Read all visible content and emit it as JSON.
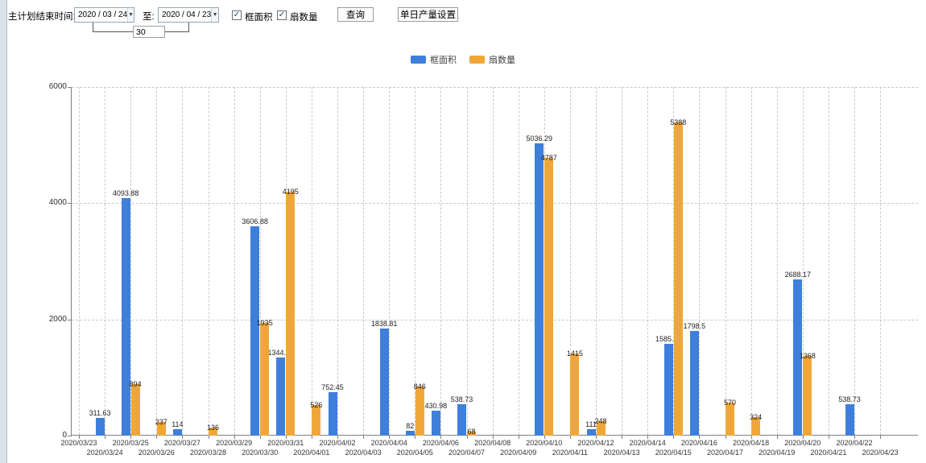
{
  "toolbar": {
    "main_label": "主计划结束时间:",
    "date_from": "2020 / 03 / 24",
    "to_label": "至:",
    "date_to": "2020 / 04 / 23",
    "days_value": "30",
    "checkbox_frame_area": {
      "label": "框面积",
      "checked": true
    },
    "checkbox_fan_count": {
      "label": "扇数量",
      "checked": true
    },
    "query_button": "查询",
    "daily_output_button": "单日产量设置"
  },
  "legend": {
    "items": [
      {
        "label": "框面积",
        "color": "#3e7fdc"
      },
      {
        "label": "扇数量",
        "color": "#f0a73a"
      }
    ]
  },
  "chart_data": {
    "type": "bar",
    "title": "",
    "xlabel": "",
    "ylabel": "",
    "ylim": [
      0,
      6000
    ],
    "yticks": [
      0,
      2000,
      4000,
      6000
    ],
    "grid": "dashed",
    "legend_position": "top-center",
    "categories": [
      "2020/03/23",
      "2020/03/24",
      "2020/03/25",
      "2020/03/26",
      "2020/03/27",
      "2020/03/28",
      "2020/03/29",
      "2020/03/30",
      "2020/03/31",
      "2020/04/01",
      "2020/04/02",
      "2020/04/03",
      "2020/04/04",
      "2020/04/05",
      "2020/04/06",
      "2020/04/07",
      "2020/04/08",
      "2020/04/09",
      "2020/04/10",
      "2020/04/11",
      "2020/04/12",
      "2020/04/13",
      "2020/04/14",
      "2020/04/15",
      "2020/04/16",
      "2020/04/17",
      "2020/04/18",
      "2020/04/19",
      "2020/04/20",
      "2020/04/21",
      "2020/04/22",
      "2020/04/23"
    ],
    "series": [
      {
        "name": "框面积",
        "key": "frame-area",
        "color": "#3e7fdc",
        "values": [
          null,
          311.63,
          4093.88,
          null,
          114,
          null,
          null,
          3606.88,
          1344.95,
          null,
          752.45,
          null,
          1838.81,
          82,
          430.98,
          538.73,
          null,
          null,
          5036.29,
          null,
          111,
          null,
          null,
          1585.96,
          1798.5,
          null,
          null,
          null,
          2688.17,
          null,
          538.73,
          null
        ]
      },
      {
        "name": "扇数量",
        "key": "fan-count",
        "color": "#f0a73a",
        "values": [
          null,
          null,
          894,
          237,
          null,
          136,
          null,
          1935,
          4195,
          526,
          null,
          null,
          null,
          846,
          null,
          68,
          null,
          null,
          4787,
          1415,
          248,
          null,
          null,
          5388,
          null,
          570,
          324,
          null,
          1368,
          null,
          null,
          null
        ]
      }
    ]
  }
}
